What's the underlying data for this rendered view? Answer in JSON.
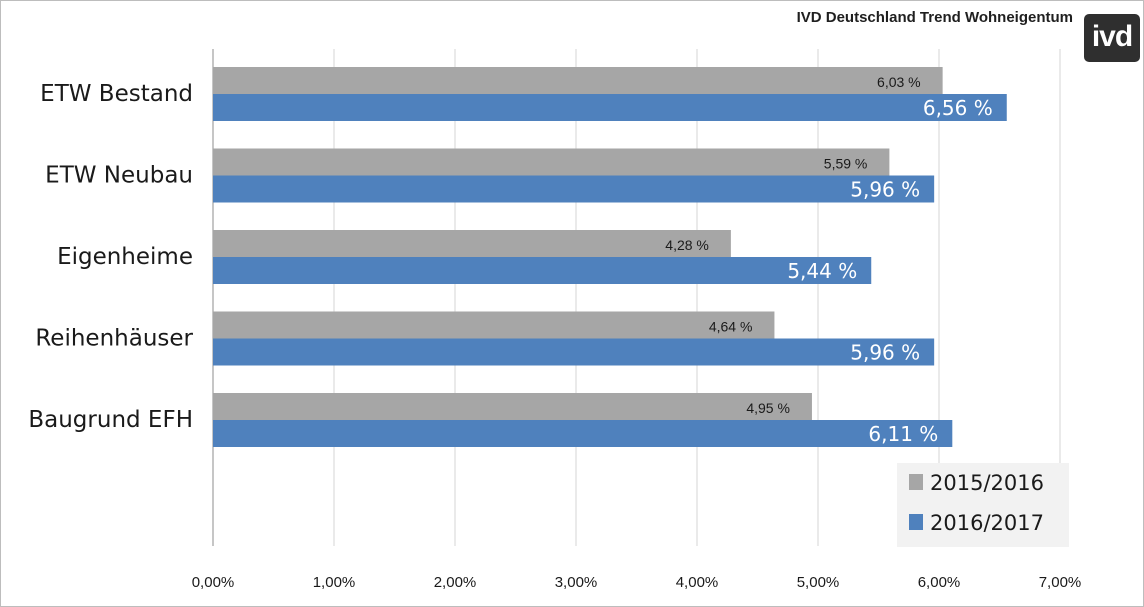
{
  "header": {
    "title": "IVD Deutschland Trend Wohneigentum",
    "logo_text": "ivd"
  },
  "chart_data": {
    "type": "bar",
    "orientation": "horizontal",
    "title": "",
    "categories": [
      "ETW Bestand",
      "ETW Neubau",
      "Eigenheime",
      "Reihenhäuser",
      "Baugrund EFH"
    ],
    "series": [
      {
        "name": "2015/2016",
        "color": "#a6a6a6",
        "values": [
          6.03,
          5.59,
          4.28,
          4.64,
          4.95
        ],
        "labels": [
          "6,03 %",
          "5,59 %",
          "4,28 %",
          "4,64 %",
          "4,95 %"
        ]
      },
      {
        "name": "2016/2017",
        "color": "#4f81bd",
        "values": [
          6.56,
          5.96,
          5.44,
          5.96,
          6.11
        ],
        "labels": [
          "6,56 %",
          "5,96 %",
          "5,44 %",
          "5,96 %",
          "6,11 %"
        ]
      }
    ],
    "xlim": [
      0,
      7
    ],
    "xticks": [
      0,
      1,
      2,
      3,
      4,
      5,
      6,
      7
    ],
    "xtick_labels": [
      "0,00%",
      "1,00%",
      "2,00%",
      "3,00%",
      "4,00%",
      "5,00%",
      "6,00%",
      "7,00%"
    ],
    "xlabel": "",
    "ylabel": "",
    "grid": "vertical",
    "legend_position": "bottom-right"
  }
}
